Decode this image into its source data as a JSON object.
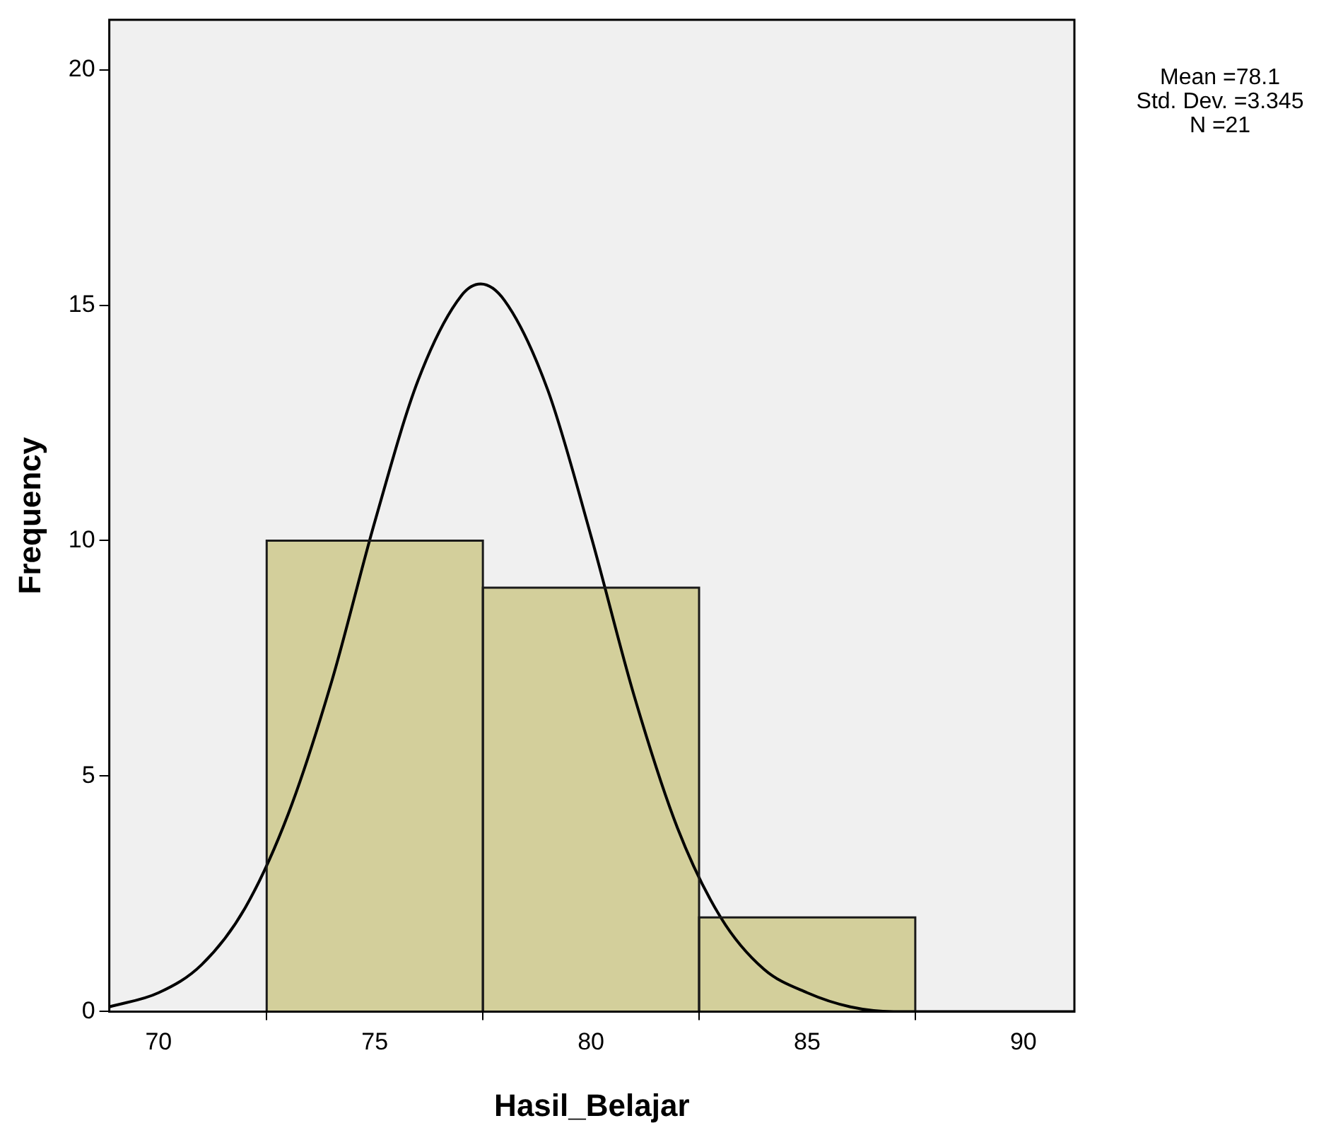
{
  "chart_data": {
    "type": "histogram",
    "xlabel": "Hasil_Belajar",
    "ylabel": "Frequency",
    "bins": [
      72.5,
      77.5,
      82.5,
      87.5
    ],
    "values": [
      10,
      9,
      2
    ],
    "color": "#d3cf9b",
    "series": [
      {
        "type": "line",
        "color": "#000000",
        "x": [
          68.86,
          70,
          71,
          72,
          73,
          74,
          75,
          76,
          77,
          77.45,
          78,
          79,
          80,
          81,
          82,
          83,
          84,
          85,
          86,
          87,
          88,
          91.18
        ],
        "values": [
          0.1,
          0.4,
          1.0,
          2.2,
          4.2,
          7.0,
          10.4,
          13.4,
          15.2,
          15.45,
          15.1,
          13.2,
          10.1,
          6.7,
          3.9,
          2.0,
          0.9,
          0.4,
          0.1,
          0.0,
          0.0,
          0.0
        ]
      }
    ],
    "xlim": [
      68.86,
      91.18
    ],
    "xticks": [
      70,
      75,
      80,
      85,
      90
    ],
    "ylim": [
      0,
      21.06
    ],
    "yticks": [
      0,
      5,
      10,
      15,
      20
    ],
    "grid": false,
    "legend": false,
    "annotations": [
      "Mean =78.1",
      "Std. Dev. =3.345",
      "N =21"
    ]
  }
}
